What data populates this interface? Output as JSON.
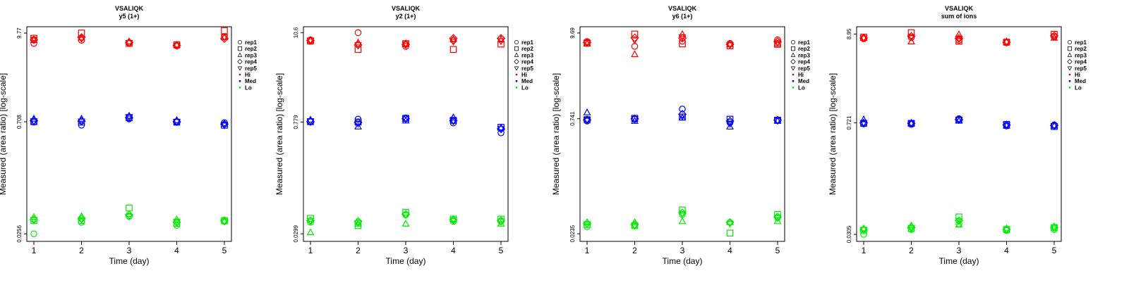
{
  "chart_data": [
    {
      "type": "scatter",
      "title": "VSALIQK",
      "subtitle": "y5 (1+)",
      "xlabel": "Time (day)",
      "ylabel": "Measured (area ratio) [log-scale]",
      "x_ticks": [
        "1",
        "2",
        "3",
        "4",
        "5"
      ],
      "y_ticks": [
        {
          "label": "9.77",
          "value": 9.77
        },
        {
          "label": "0.708",
          "value": 0.708
        },
        {
          "label": "0.0256",
          "value": 0.0256
        }
      ],
      "ylim": [
        0.0205,
        11.8
      ],
      "legend": {
        "position": "right",
        "entries": [
          {
            "label": "rep1",
            "symbol": "circle"
          },
          {
            "label": "rep2",
            "symbol": "square"
          },
          {
            "label": "rep3",
            "symbol": "triangle-up"
          },
          {
            "label": "rep4",
            "symbol": "diamond"
          },
          {
            "label": "rep5",
            "symbol": "triangle-down"
          },
          {
            "label": "Hi",
            "color": "#ff0000"
          },
          {
            "label": "Med",
            "color": "#0000ff"
          },
          {
            "label": "Lo",
            "color": "#00ee00"
          }
        ]
      },
      "series": [
        {
          "name": "Hi",
          "color": "#ff0000",
          "rep1": [
            7.2,
            7.9,
            7.3,
            6.7,
            8.8
          ],
          "rep2": [
            8.4,
            9.8,
            7.2,
            6.9,
            10.5
          ],
          "rep3": [
            7.9,
            8.5,
            7.6,
            6.9,
            8.6
          ],
          "rep4": [
            8.0,
            8.6,
            7.4,
            6.8,
            8.3
          ],
          "rep5": [
            8.1,
            8.3,
            7.3,
            6.8,
            8.7
          ]
        },
        {
          "name": "Med",
          "color": "#0000ff",
          "rep1": [
            0.7,
            0.64,
            0.77,
            0.7,
            0.69
          ],
          "rep2": [
            0.71,
            0.7,
            0.8,
            0.7,
            0.64
          ],
          "rep3": [
            0.77,
            0.77,
            0.84,
            0.74,
            0.66
          ],
          "rep4": [
            0.73,
            0.72,
            0.8,
            0.71,
            0.66
          ],
          "rep5": [
            0.72,
            0.72,
            0.82,
            0.71,
            0.64
          ]
        },
        {
          "name": "Lo",
          "color": "#00ee00",
          "rep1": [
            0.0256,
            0.036,
            0.043,
            0.033,
            0.037
          ],
          "rep2": [
            0.038,
            0.038,
            0.055,
            0.035,
            0.038
          ],
          "rep3": [
            0.042,
            0.043,
            0.046,
            0.039,
            0.037
          ],
          "rep4": [
            0.039,
            0.04,
            0.045,
            0.036,
            0.038
          ],
          "rep5": [
            0.039,
            0.039,
            0.043,
            0.037,
            0.037
          ]
        }
      ]
    },
    {
      "type": "scatter",
      "title": "VSALIQK",
      "subtitle": "y2 (1+)",
      "xlabel": "Time (day)",
      "ylabel": "Measured (area ratio) [log-scale]",
      "x_ticks": [
        "1",
        "2",
        "3",
        "4",
        "5"
      ],
      "y_ticks": [
        {
          "label": "10.6",
          "value": 10.6
        },
        {
          "label": "0.779",
          "value": 0.779
        },
        {
          "label": "0.0299",
          "value": 0.0299
        }
      ],
      "ylim": [
        0.024,
        12.6
      ],
      "legend": {
        "position": "right",
        "entries": [
          {
            "label": "rep1",
            "symbol": "circle"
          },
          {
            "label": "rep2",
            "symbol": "square"
          },
          {
            "label": "rep3",
            "symbol": "triangle-up"
          },
          {
            "label": "rep4",
            "symbol": "diamond"
          },
          {
            "label": "rep5",
            "symbol": "triangle-down"
          },
          {
            "label": "Hi",
            "color": "#ff0000"
          },
          {
            "label": "Med",
            "color": "#0000ff"
          },
          {
            "label": "Lo",
            "color": "#00ee00"
          }
        ]
      },
      "series": [
        {
          "name": "Hi",
          "color": "#ff0000",
          "rep1": [
            8.6,
            10.6,
            7.1,
            8.5,
            8.9
          ],
          "rep2": [
            8.3,
            6.5,
            7.7,
            6.5,
            7.6
          ],
          "rep3": [
            8.4,
            7.9,
            7.7,
            8.7,
            8.6
          ],
          "rep4": [
            8.4,
            7.4,
            7.5,
            9.0,
            9.0
          ],
          "rep5": [
            8.5,
            7.4,
            7.6,
            8.2,
            8.3
          ]
        },
        {
          "name": "Med",
          "color": "#0000ff",
          "rep1": [
            0.79,
            0.85,
            0.88,
            0.76,
            0.57
          ],
          "rep2": [
            0.79,
            0.78,
            0.87,
            0.82,
            0.67
          ],
          "rep3": [
            0.83,
            0.68,
            0.81,
            0.89,
            0.66
          ],
          "rep4": [
            0.79,
            0.77,
            0.86,
            0.81,
            0.64
          ],
          "rep5": [
            0.8,
            0.75,
            0.85,
            0.81,
            0.64
          ]
        },
        {
          "name": "Lo",
          "color": "#00ee00",
          "rep1": [
            0.042,
            0.042,
            0.052,
            0.043,
            0.043
          ],
          "rep2": [
            0.047,
            0.038,
            0.056,
            0.046,
            0.046
          ],
          "rep3": [
            0.031,
            0.04,
            0.04,
            0.046,
            0.04
          ],
          "rep4": [
            0.044,
            0.043,
            0.053,
            0.045,
            0.044
          ],
          "rep5": [
            0.044,
            0.041,
            0.052,
            0.045,
            0.043
          ]
        }
      ]
    },
    {
      "type": "scatter",
      "title": "VSALIQK",
      "subtitle": "y6 (1+)",
      "xlabel": "Time (day)",
      "ylabel": "Measured (area ratio) [log-scale]",
      "x_ticks": [
        "1",
        "2",
        "3",
        "4",
        "5"
      ],
      "y_ticks": [
        {
          "label": "9.69",
          "value": 9.69
        },
        {
          "label": "0.741",
          "value": 0.741
        },
        {
          "label": "0.0235",
          "value": 0.0235
        }
      ],
      "ylim": [
        0.0187,
        11.7
      ],
      "legend": {
        "position": "right",
        "entries": [
          {
            "label": "rep1",
            "symbol": "circle"
          },
          {
            "label": "rep2",
            "symbol": "square"
          },
          {
            "label": "rep3",
            "symbol": "triangle-up"
          },
          {
            "label": "rep4",
            "symbol": "diamond"
          },
          {
            "label": "rep5",
            "symbol": "triangle-down"
          },
          {
            "label": "Hi",
            "color": "#ff0000"
          },
          {
            "label": "Med",
            "color": "#0000ff"
          },
          {
            "label": "Lo",
            "color": "#00ee00"
          }
        ]
      },
      "series": [
        {
          "name": "Hi",
          "color": "#ff0000",
          "rep1": [
            7.5,
            6.5,
            7.6,
            7.1,
            7.9
          ],
          "rep2": [
            7.2,
            9.4,
            7.0,
            6.6,
            6.9
          ],
          "rep3": [
            7.0,
            5.1,
            9.3,
            6.9,
            7.0
          ],
          "rep4": [
            7.3,
            8.4,
            8.3,
            6.9,
            7.5
          ],
          "rep5": [
            7.2,
            7.8,
            8.6,
            6.8,
            7.3
          ]
        },
        {
          "name": "Med",
          "color": "#0000ff",
          "rep1": [
            0.69,
            0.73,
            0.99,
            0.66,
            0.71
          ],
          "rep2": [
            0.72,
            0.75,
            0.78,
            0.73,
            0.71
          ],
          "rep3": [
            0.89,
            0.69,
            0.76,
            0.58,
            0.69
          ],
          "rep4": [
            0.72,
            0.74,
            0.85,
            0.69,
            0.71
          ],
          "rep5": [
            0.72,
            0.74,
            0.8,
            0.64,
            0.7
          ]
        },
        {
          "name": "Lo",
          "color": "#00ee00",
          "rep1": [
            0.029,
            0.03,
            0.042,
            0.033,
            0.038
          ],
          "rep2": [
            0.031,
            0.03,
            0.048,
            0.024,
            0.042
          ],
          "rep3": [
            0.033,
            0.033,
            0.034,
            0.033,
            0.034
          ],
          "rep4": [
            0.032,
            0.031,
            0.044,
            0.033,
            0.039
          ],
          "rep5": [
            0.031,
            0.03,
            0.043,
            0.032,
            0.038
          ]
        }
      ]
    },
    {
      "type": "scatter",
      "title": "VSALIQK",
      "subtitle": "sum of ions",
      "xlabel": "Time (day)",
      "ylabel": "Measured (area ratio) [log-scale]",
      "x_ticks": [
        "1",
        "2",
        "3",
        "4",
        "5"
      ],
      "y_ticks": [
        {
          "label": "8.95",
          "value": 8.95
        },
        {
          "label": "0.721",
          "value": 0.721
        },
        {
          "label": "0.0305",
          "value": 0.0305
        }
      ],
      "ylim": [
        0.025,
        11.0
      ],
      "legend": {
        "position": "right",
        "entries": [
          {
            "label": "rep1",
            "symbol": "circle"
          },
          {
            "label": "rep2",
            "symbol": "square"
          },
          {
            "label": "rep3",
            "symbol": "triangle-up"
          },
          {
            "label": "rep4",
            "symbol": "diamond"
          },
          {
            "label": "rep5",
            "symbol": "triangle-down"
          },
          {
            "label": "Hi",
            "color": "#ff0000"
          },
          {
            "label": "Med",
            "color": "#0000ff"
          },
          {
            "label": "Lo",
            "color": "#00ee00"
          }
        ]
      },
      "series": [
        {
          "name": "Hi",
          "color": "#ff0000",
          "rep1": [
            7.8,
            8.1,
            7.5,
            7.0,
            8.3
          ],
          "rep2": [
            8.2,
            9.3,
            7.3,
            7.1,
            8.9
          ],
          "rep3": [
            8.0,
            7.2,
            8.8,
            7.2,
            8.0
          ],
          "rep4": [
            8.0,
            8.4,
            7.9,
            7.1,
            8.5
          ],
          "rep5": [
            8.0,
            8.3,
            7.9,
            7.1,
            8.4
          ]
        },
        {
          "name": "Med",
          "color": "#0000ff",
          "rep1": [
            0.7,
            0.69,
            0.81,
            0.66,
            0.68
          ],
          "rep2": [
            0.71,
            0.71,
            0.78,
            0.69,
            0.65
          ],
          "rep3": [
            0.79,
            0.71,
            0.76,
            0.66,
            0.66
          ],
          "rep4": [
            0.72,
            0.71,
            0.79,
            0.68,
            0.67
          ],
          "rep5": [
            0.72,
            0.71,
            0.79,
            0.68,
            0.66
          ]
        },
        {
          "name": "Lo",
          "color": "#00ee00",
          "rep1": [
            0.0305,
            0.035,
            0.041,
            0.034,
            0.035
          ],
          "rep2": [
            0.034,
            0.036,
            0.05,
            0.035,
            0.037
          ],
          "rep3": [
            0.036,
            0.039,
            0.04,
            0.036,
            0.038
          ],
          "rep4": [
            0.035,
            0.037,
            0.045,
            0.035,
            0.037
          ],
          "rep5": [
            0.035,
            0.037,
            0.045,
            0.035,
            0.037
          ]
        }
      ]
    }
  ]
}
